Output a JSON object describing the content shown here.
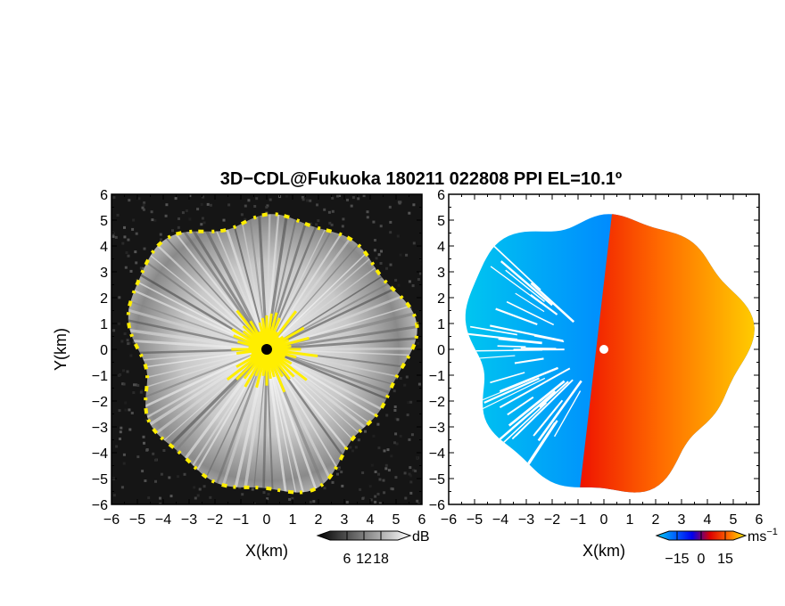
{
  "title": "3D−CDL@Fukuoka 180211 022808 PPI EL=10.1º",
  "chart_data": [
    {
      "type": "heatmap",
      "panel": "left",
      "quantity": "SNR",
      "xlabel": "X(km)",
      "ylabel": "Y(km)",
      "xlim": [
        -6,
        6
      ],
      "ylim": [
        -6,
        6
      ],
      "xticks": [
        "−6",
        "−5",
        "−4",
        "−3",
        "−2",
        "−1",
        "0",
        "1",
        "2",
        "3",
        "4",
        "5",
        "6"
      ],
      "yticks": [
        "6",
        "5",
        "4",
        "3",
        "2",
        "1",
        "0",
        "−1",
        "−2",
        "−3",
        "−4",
        "−5",
        "−6"
      ],
      "colorbar": {
        "ticks": [
          "6",
          "12",
          "18"
        ],
        "unit": "dB",
        "range": [
          0,
          24
        ],
        "colors": [
          "#000000",
          "#ffffff"
        ]
      },
      "highlight_color": "#ffee00",
      "background_color": "#151515",
      "echo_radius_km": 5.3,
      "center_km": [
        0,
        0
      ]
    },
    {
      "type": "heatmap",
      "panel": "right",
      "quantity": "Doppler velocity",
      "xlabel": "X(km)",
      "ylabel": "",
      "xlim": [
        -6,
        6
      ],
      "ylim": [
        -6,
        6
      ],
      "xticks": [
        "−6",
        "−5",
        "−4",
        "−3",
        "−2",
        "−1",
        "0",
        "1",
        "2",
        "3",
        "4",
        "5",
        "6"
      ],
      "yticks": [
        "6",
        "5",
        "4",
        "3",
        "2",
        "1",
        "0",
        "−1",
        "−2",
        "−3",
        "−4",
        "−5",
        "−6"
      ],
      "colorbar": {
        "ticks": [
          "−15",
          "0",
          "15"
        ],
        "unit": "ms",
        "unit_exp": "−1",
        "range": [
          -20,
          20
        ],
        "colors": [
          "#00ccee",
          "#0066ff",
          "#0000ee",
          "#dd0000",
          "#ff6600",
          "#ffee00"
        ]
      },
      "negative_colors": [
        "#00ccee",
        "#0088ff",
        "#0044dd"
      ],
      "positive_colors": [
        "#ee1100",
        "#ff6a00",
        "#ffd000"
      ],
      "echo_radius_km": 5.3,
      "center_km": [
        0,
        0
      ]
    }
  ]
}
